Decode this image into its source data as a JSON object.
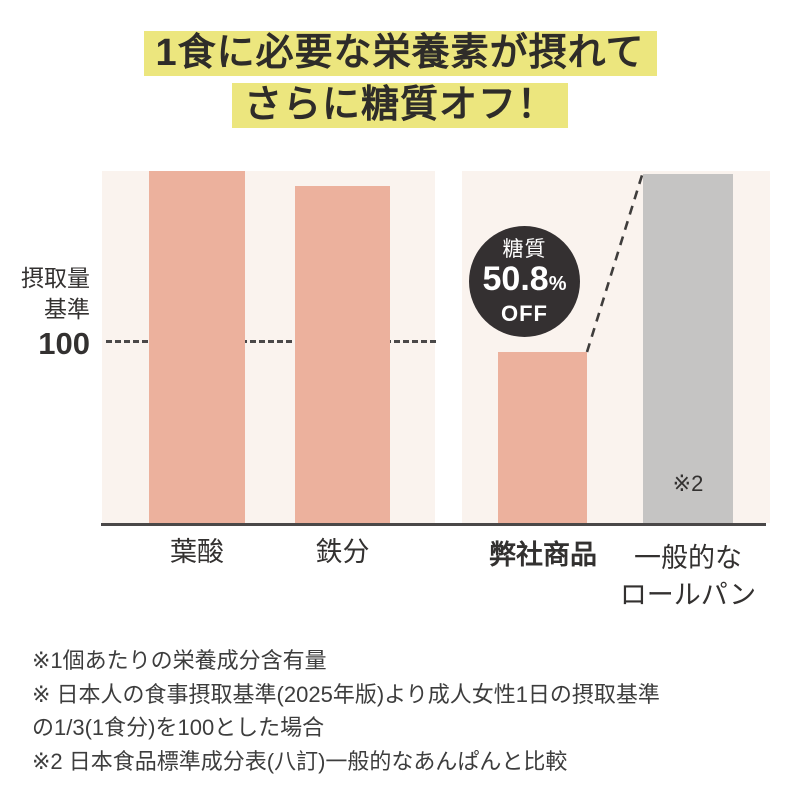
{
  "title": {
    "line1": "1食に必要な栄養素が摂れて",
    "line2": "さらに糖質オフ！"
  },
  "y_axis": {
    "line1": "摂取量",
    "line2": "基準",
    "value": "100"
  },
  "badge": {
    "label": "糖質",
    "value": "50.8",
    "unit": "%",
    "suffix": "OFF"
  },
  "gray_bar_note": "※2",
  "x_labels": {
    "folic_acid": "葉酸",
    "iron": "鉄分",
    "our_product": "弊社商品",
    "roll_line1": "一般的な",
    "roll_line2": "ロールパン"
  },
  "footnotes": {
    "line1": "※1個あたりの栄養成分含有量",
    "line2": "※ 日本人の食事摂取基準(2025年版)より成人女性1日の摂取基準",
    "line3": "の1/3(1食分)を100とした場合",
    "line4": "※2 日本食品標準成分表(八訂)一般的なあんぱんと比較"
  },
  "chart_data": {
    "type": "bar",
    "title": "1食に必要な栄養素が摂れて さらに糖質オフ！",
    "categories": [
      "葉酸",
      "鉄分",
      "弊社商品",
      "一般的なロールパン"
    ],
    "values": [
      195,
      186,
      94.5,
      193
    ],
    "bar_colors": [
      "#ecb19d",
      "#ecb19d",
      "#ecb19d",
      "#c5c4c3"
    ],
    "baseline": {
      "value": 100,
      "label": "摂取量基準"
    },
    "ylabel": "摂取量基準",
    "ylim": [
      0,
      195
    ],
    "grid": false,
    "legend": false,
    "annotations": [
      "糖質50.8%OFF",
      "※2"
    ]
  },
  "colors": {
    "highlight_yellow": "#ece67e",
    "bar_salmon": "#ecb19d",
    "bar_gray": "#c5c4c3",
    "panel_cream": "#faf3ee",
    "badge_dark": "#343031",
    "badge_text": "#ffffff",
    "axis_dark": "#4a4848",
    "text_dark": "#333130"
  }
}
